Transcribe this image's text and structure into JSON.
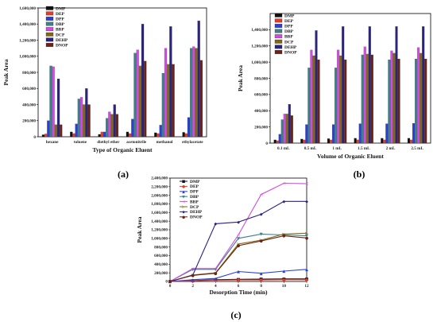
{
  "panel_labels": [
    "(a)",
    "(b)",
    "(c)"
  ],
  "colors": {
    "DMP": "#111111",
    "DEP": "#e53b2b",
    "DPP": "#2a3fd6",
    "DBP": "#3f7f8c",
    "BBP": "#d14be0",
    "DCP": "#7f6a12",
    "DEHP": "#2a2380",
    "DNOP": "#6b2318"
  },
  "chart_data": [
    {
      "type": "bar",
      "panel": "(a)",
      "xlabel": "Type of Organic Eluent",
      "ylabel": "Peak Area",
      "categories": [
        "hexane",
        "toluene",
        "diethyl ether",
        "acetonitrile",
        "methanol",
        "ethylacetate"
      ],
      "ylim": [
        0,
        1600000
      ],
      "yticks": [
        "0",
        "200,000",
        "400,000",
        "600,000",
        "800,000",
        "1,000,000",
        "1,200,000",
        "1,400,000",
        "1,600,000"
      ],
      "series": [
        {
          "name": "DMP",
          "values": [
            25000,
            60000,
            30000,
            60000,
            50000,
            55000
          ]
        },
        {
          "name": "DEP",
          "values": [
            35000,
            40000,
            60000,
            40000,
            40000,
            40000
          ]
        },
        {
          "name": "DPP",
          "values": [
            200000,
            160000,
            60000,
            220000,
            145000,
            240000
          ]
        },
        {
          "name": "DBP",
          "values": [
            880000,
            470000,
            230000,
            1040000,
            790000,
            1100000
          ]
        },
        {
          "name": "BBP",
          "values": [
            870000,
            490000,
            310000,
            1080000,
            1100000,
            1120000
          ]
        },
        {
          "name": "DCP",
          "values": [
            150000,
            400000,
            280000,
            880000,
            900000,
            1100000
          ]
        },
        {
          "name": "DEHP",
          "values": [
            720000,
            600000,
            400000,
            1400000,
            1370000,
            1440000
          ]
        },
        {
          "name": "DNOP",
          "values": [
            150000,
            400000,
            280000,
            940000,
            900000,
            950000
          ]
        }
      ],
      "legend": "top-left"
    },
    {
      "type": "bar",
      "panel": "(b)",
      "xlabel": "Volume of Organic Eluent",
      "ylabel": "Peak Area",
      "categories": [
        "0.1 mL",
        "0.5 mL",
        "1 mL",
        "1.5 mL",
        "2 mL",
        "2.5 mL"
      ],
      "ylim": [
        0,
        1600000
      ],
      "yticks": [
        "0",
        "200,000",
        "400,000",
        "600,000",
        "800,000",
        "1,000,000",
        "1,200,000",
        "1,400,000"
      ],
      "series": [
        {
          "name": "DMP",
          "values": [
            40000,
            50000,
            55000,
            60000,
            60000,
            60000
          ]
        },
        {
          "name": "DEP",
          "values": [
            30000,
            40000,
            40000,
            40000,
            40000,
            40000
          ]
        },
        {
          "name": "DPP",
          "values": [
            110000,
            230000,
            230000,
            240000,
            240000,
            245000
          ]
        },
        {
          "name": "DBP",
          "values": [
            290000,
            930000,
            930000,
            1090000,
            1030000,
            1040000
          ]
        },
        {
          "name": "BBP",
          "values": [
            360000,
            1150000,
            1150000,
            1190000,
            1140000,
            1180000
          ]
        },
        {
          "name": "DCP",
          "values": [
            360000,
            1080000,
            1080000,
            1100000,
            1110000,
            1110000
          ]
        },
        {
          "name": "DEHP",
          "values": [
            480000,
            1390000,
            1440000,
            1440000,
            1440000,
            1440000
          ]
        },
        {
          "name": "DNOP",
          "values": [
            340000,
            1030000,
            1030000,
            1090000,
            1040000,
            1040000
          ]
        }
      ],
      "legend": "top-left"
    },
    {
      "type": "line",
      "panel": "(c)",
      "xlabel": "Desorption Time (min)",
      "ylabel": "Peak Area",
      "x": [
        0,
        2,
        4,
        6,
        8,
        10,
        12
      ],
      "xticks": [
        "0",
        "2",
        "4",
        "6",
        "8",
        "10",
        "12"
      ],
      "ylim": [
        0,
        2400000
      ],
      "yticks": [
        "0",
        "200,000",
        "400,000",
        "600,000",
        "800,000",
        "1,000,000",
        "1,200,000",
        "1,400,000",
        "1,600,000",
        "1,800,000",
        "2,000,000",
        "2,200,000",
        "2,400,000"
      ],
      "series": [
        {
          "name": "DMP",
          "marker": "■",
          "values": [
            0,
            20000,
            40000,
            50000,
            55000,
            60000,
            60000
          ]
        },
        {
          "name": "DEP",
          "marker": "●",
          "values": [
            0,
            15000,
            30000,
            35000,
            35000,
            40000,
            40000
          ]
        },
        {
          "name": "DPP",
          "marker": "▲",
          "values": [
            0,
            40000,
            70000,
            230000,
            190000,
            240000,
            280000
          ]
        },
        {
          "name": "DBP",
          "marker": "▼",
          "values": [
            0,
            280000,
            280000,
            1000000,
            1100000,
            1080000,
            1060000
          ]
        },
        {
          "name": "BBP",
          "marker": "◁",
          "values": [
            0,
            300000,
            300000,
            1080000,
            2020000,
            2280000,
            2270000
          ]
        },
        {
          "name": "DCP",
          "marker": "▷",
          "values": [
            0,
            150000,
            200000,
            870000,
            960000,
            1100000,
            1120000
          ]
        },
        {
          "name": "DEHP",
          "marker": "◆",
          "values": [
            0,
            150000,
            1340000,
            1380000,
            1560000,
            1860000,
            1860000
          ]
        },
        {
          "name": "DNOP",
          "marker": "●",
          "values": [
            0,
            140000,
            190000,
            830000,
            940000,
            1060000,
            1010000
          ]
        }
      ],
      "legend": "top-left"
    }
  ]
}
